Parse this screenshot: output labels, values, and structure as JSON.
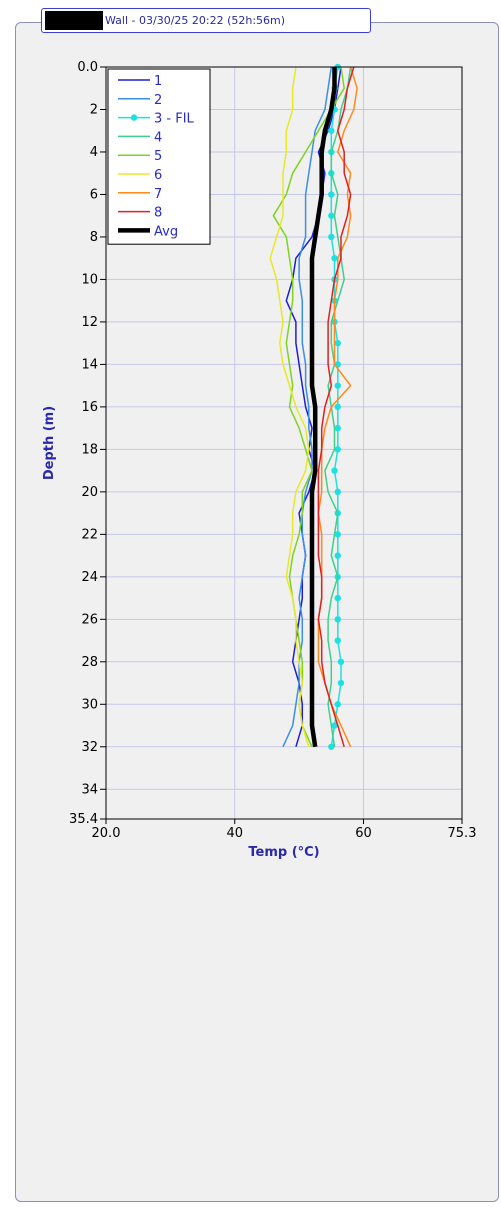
{
  "header": {
    "title": "Wall - 03/30/25 20:22 (52h:56m)"
  },
  "chart_data": {
    "type": "line",
    "title": "Wall - 03/30/25 20:22 (52h:56m)",
    "xlabel": "Temp (°C)",
    "ylabel": "Depth (m)",
    "xlim": [
      20.0,
      75.3
    ],
    "ylim": [
      0.0,
      35.4
    ],
    "y_inverted": true,
    "grid": true,
    "legend_position": "top-left",
    "x_ticks": [
      "20.0",
      "40",
      "60",
      "75.3"
    ],
    "y_ticks": [
      "0.0",
      "2",
      "4",
      "6",
      "8",
      "10",
      "12",
      "14",
      "16",
      "18",
      "20",
      "22",
      "24",
      "26",
      "28",
      "30",
      "32",
      "34",
      "35.4"
    ],
    "depth": [
      0,
      1,
      2,
      3,
      4,
      5,
      6,
      7,
      8,
      9,
      10,
      11,
      12,
      13,
      14,
      15,
      16,
      17,
      18,
      19,
      20,
      21,
      22,
      23,
      24,
      25,
      26,
      27,
      28,
      29,
      30,
      31,
      32
    ],
    "series": [
      {
        "name": "1",
        "color": "#1f1fd0",
        "markers": false,
        "width": 1.5,
        "values": [
          56.5,
          56.0,
          55.5,
          54.5,
          53.0,
          54.0,
          53.5,
          53.0,
          52.0,
          49.5,
          49.0,
          48.0,
          49.5,
          49.5,
          50.0,
          50.5,
          51.0,
          52.0,
          51.5,
          52.5,
          51.5,
          50.0,
          50.5,
          51.0,
          50.5,
          50.5,
          50.0,
          49.5,
          49.0,
          50.0,
          50.5,
          50.5,
          49.5
        ]
      },
      {
        "name": "2",
        "color": "#3a8ee6",
        "markers": false,
        "width": 1.5,
        "values": [
          55.0,
          54.5,
          54.0,
          52.5,
          52.0,
          51.5,
          51.0,
          51.0,
          51.0,
          50.0,
          50.0,
          50.5,
          50.5,
          50.5,
          51.0,
          51.0,
          51.5,
          51.5,
          52.0,
          52.0,
          51.0,
          50.5,
          50.5,
          51.0,
          50.5,
          50.0,
          50.5,
          50.5,
          50.0,
          50.0,
          49.5,
          49.0,
          47.5
        ]
      },
      {
        "name": "3 - FIL",
        "color": "#1ee0e0",
        "markers": true,
        "width": 1.5,
        "values": [
          56.0,
          55.5,
          55.5,
          55.0,
          55.0,
          55.0,
          55.0,
          55.0,
          55.0,
          55.5,
          55.5,
          55.5,
          55.5,
          56.0,
          56.0,
          56.0,
          56.0,
          56.0,
          56.0,
          55.5,
          56.0,
          56.0,
          56.0,
          56.0,
          56.0,
          56.0,
          56.0,
          56.0,
          56.5,
          56.5,
          56.0,
          55.5,
          55.0
        ]
      },
      {
        "name": "4",
        "color": "#3ecf8e",
        "markers": false,
        "width": 1.5,
        "values": [
          58.0,
          57.5,
          56.5,
          56.0,
          55.0,
          55.0,
          56.0,
          55.5,
          56.0,
          56.5,
          57.0,
          56.0,
          55.0,
          55.0,
          55.5,
          54.5,
          55.0,
          55.5,
          55.5,
          54.0,
          54.5,
          56.0,
          55.5,
          55.0,
          56.0,
          55.0,
          54.5,
          54.5,
          55.0,
          55.0,
          54.5,
          55.0,
          55.5
        ]
      },
      {
        "name": "5",
        "color": "#7ed321",
        "markers": false,
        "width": 1.5,
        "values": [
          56.5,
          57.0,
          55.0,
          53.0,
          51.0,
          49.0,
          48.0,
          46.0,
          48.0,
          48.5,
          49.0,
          49.0,
          48.5,
          48.0,
          48.5,
          49.0,
          48.5,
          50.0,
          51.0,
          52.0,
          50.5,
          50.5,
          50.0,
          49.0,
          48.5,
          49.0,
          49.5,
          50.0,
          50.5,
          50.5,
          50.0,
          50.5,
          52.0
        ]
      },
      {
        "name": "6",
        "color": "#e8e828",
        "markers": false,
        "width": 1.5,
        "values": [
          49.5,
          49.0,
          49.0,
          48.0,
          48.0,
          47.5,
          47.5,
          47.5,
          46.5,
          45.5,
          46.5,
          47.0,
          47.5,
          47.0,
          47.5,
          48.5,
          49.5,
          51.0,
          51.5,
          51.0,
          49.5,
          49.0,
          49.0,
          48.5,
          48.0,
          49.0,
          49.5,
          49.5,
          50.0,
          50.5,
          50.0,
          50.5,
          51.5
        ]
      },
      {
        "name": "7",
        "color": "#ff8a1a",
        "markers": false,
        "width": 1.5,
        "values": [
          58.0,
          59.0,
          58.5,
          57.0,
          56.0,
          58.0,
          57.5,
          58.0,
          57.5,
          56.0,
          56.0,
          55.5,
          55.5,
          55.5,
          55.5,
          58.0,
          55.0,
          54.0,
          53.5,
          53.5,
          53.5,
          53.0,
          53.5,
          53.5,
          53.5,
          53.5,
          53.0,
          53.0,
          53.0,
          54.0,
          55.0,
          56.5,
          58.0
        ]
      },
      {
        "name": "8",
        "color": "#e02020",
        "markers": false,
        "width": 1.5,
        "values": [
          58.5,
          57.5,
          57.0,
          56.0,
          57.0,
          57.0,
          58.0,
          57.5,
          56.5,
          56.5,
          55.5,
          55.0,
          54.5,
          54.5,
          54.5,
          55.0,
          54.0,
          53.5,
          53.5,
          53.0,
          53.0,
          53.0,
          53.0,
          53.0,
          53.5,
          53.5,
          53.0,
          53.5,
          53.5,
          54.0,
          55.0,
          56.0,
          57.0
        ]
      },
      {
        "name": "Avg",
        "color": "#000000",
        "markers": false,
        "width": 4.5,
        "values": [
          55.5,
          55.5,
          55.0,
          54.0,
          53.5,
          53.5,
          53.5,
          53.0,
          52.5,
          52.0,
          52.0,
          52.0,
          52.0,
          52.0,
          52.0,
          52.0,
          52.5,
          52.5,
          52.5,
          52.5,
          52.0,
          52.0,
          52.0,
          52.0,
          52.0,
          52.0,
          52.0,
          52.0,
          52.0,
          52.0,
          52.0,
          52.0,
          52.5
        ]
      }
    ]
  }
}
